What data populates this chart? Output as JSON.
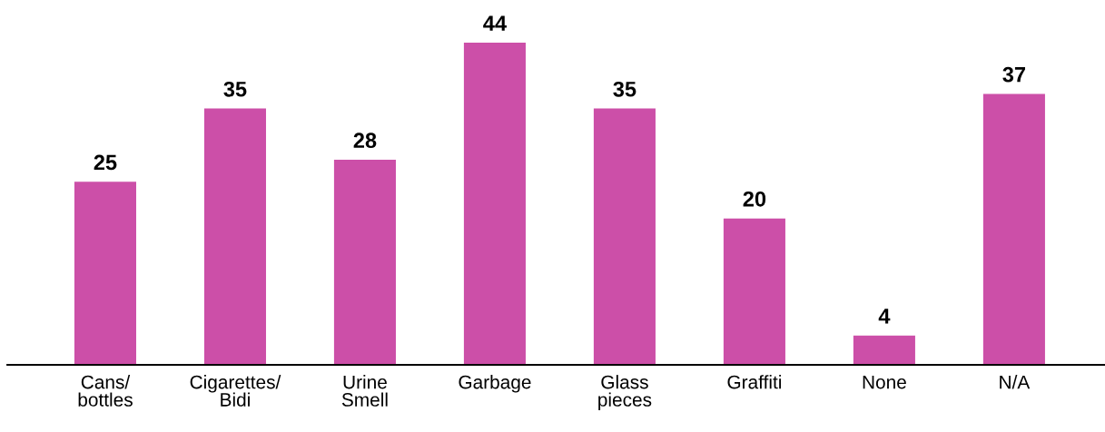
{
  "chart_data": {
    "type": "bar",
    "categories": [
      "Cans/\nbottles",
      "Cigarettes/\nBidi",
      "Urine\nSmell",
      "Garbage",
      "Glass\npieces",
      "Graffiti",
      "None",
      "N/A"
    ],
    "values": [
      25,
      35,
      28,
      44,
      35,
      20,
      4,
      37
    ],
    "color": "#cc4fa8",
    "data_labels": true
  }
}
